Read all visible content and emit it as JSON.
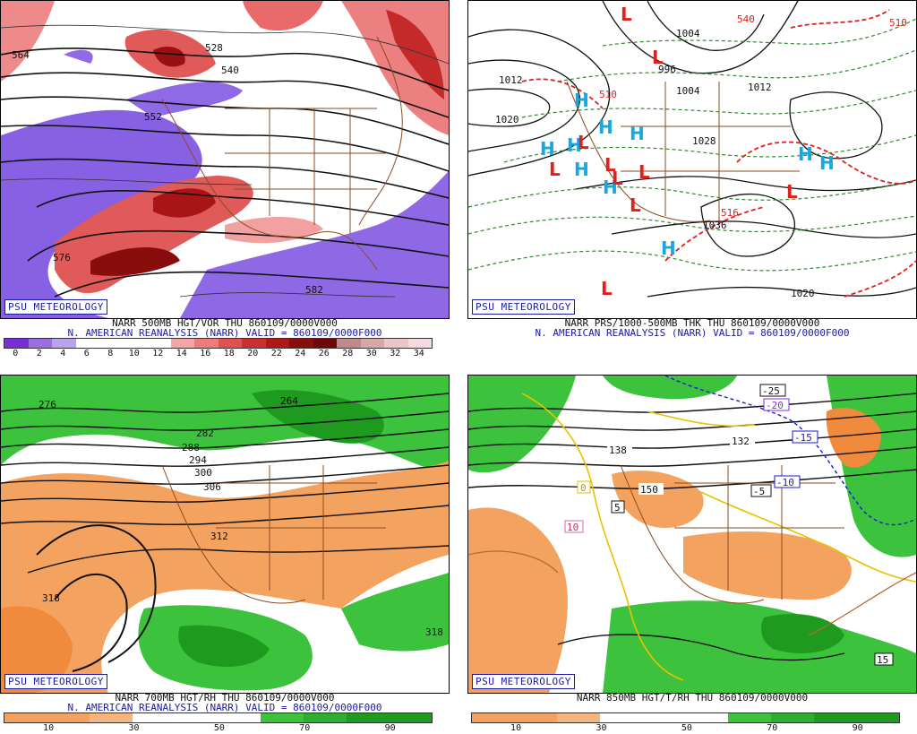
{
  "panels": {
    "p1": {
      "badge": "PSU METEOROLOGY",
      "caption1": "NARR 500MB HGT/VOR THU 860109/0000V000",
      "caption2": "N. AMERICAN REANALYSIS (NARR) VALID = 860109/0000F000",
      "colorbar_ticks": [
        "0",
        "2",
        "4",
        "6",
        "8",
        "10",
        "12",
        "14",
        "16",
        "18",
        "20",
        "22",
        "24",
        "26",
        "28",
        "30",
        "32",
        "34"
      ],
      "contour_labels": [
        "528",
        "540",
        "552",
        "564",
        "576",
        "582"
      ],
      "colors": [
        "#7a2fd6",
        "#9a6fe0",
        "#b9a3ea",
        "#ffffff",
        "#ffffff",
        "#ffffff",
        "#ffffff",
        "#f4a6a6",
        "#ec7b7b",
        "#e05252",
        "#cc2f2f",
        "#b01818",
        "#8a0d0d",
        "#6e0707",
        "#c08a8a",
        "#d6a8a8",
        "#ecc6c6",
        "#f4d9df"
      ]
    },
    "p2": {
      "badge": "PSU METEOROLOGY",
      "caption1": "NARR PRS/1000-500MB THK THU 860109/0000V000",
      "caption2": "N. AMERICAN REANALYSIS (NARR) VALID = 860109/0000F000",
      "contour_labels": [
        "996",
        "1004",
        "1012",
        "1020",
        "1028",
        "1036",
        "1020",
        "1004",
        "1012"
      ],
      "thk_labels": [
        "510",
        "516",
        "540",
        "510"
      ],
      "H_color": "#1aa6e0",
      "L_color": "#e0201a"
    },
    "p3": {
      "badge": "PSU METEOROLOGY",
      "caption1": "NARR 700MB HGT/RH THU 860109/0000V000",
      "caption2": "N. AMERICAN REANALYSIS (NARR) VALID = 860109/0000F000",
      "colorbar_ticks": [
        "10",
        "30",
        "50",
        "70",
        "90"
      ],
      "contour_labels": [
        "276",
        "282",
        "288",
        "294",
        "300",
        "306",
        "312",
        "318",
        "318",
        "264"
      ]
    },
    "p4": {
      "badge": "PSU METEOROLOGY",
      "caption1": "NARR 850MB HGT/T/RH THU 860109/0000V000",
      "colorbar_ticks": [
        "10",
        "30",
        "50",
        "70",
        "90"
      ],
      "contour_labels": [
        "132",
        "138",
        "150",
        "-5",
        "-10",
        "-15",
        "-20",
        "-25",
        "5",
        "10",
        "15",
        "0"
      ]
    }
  }
}
